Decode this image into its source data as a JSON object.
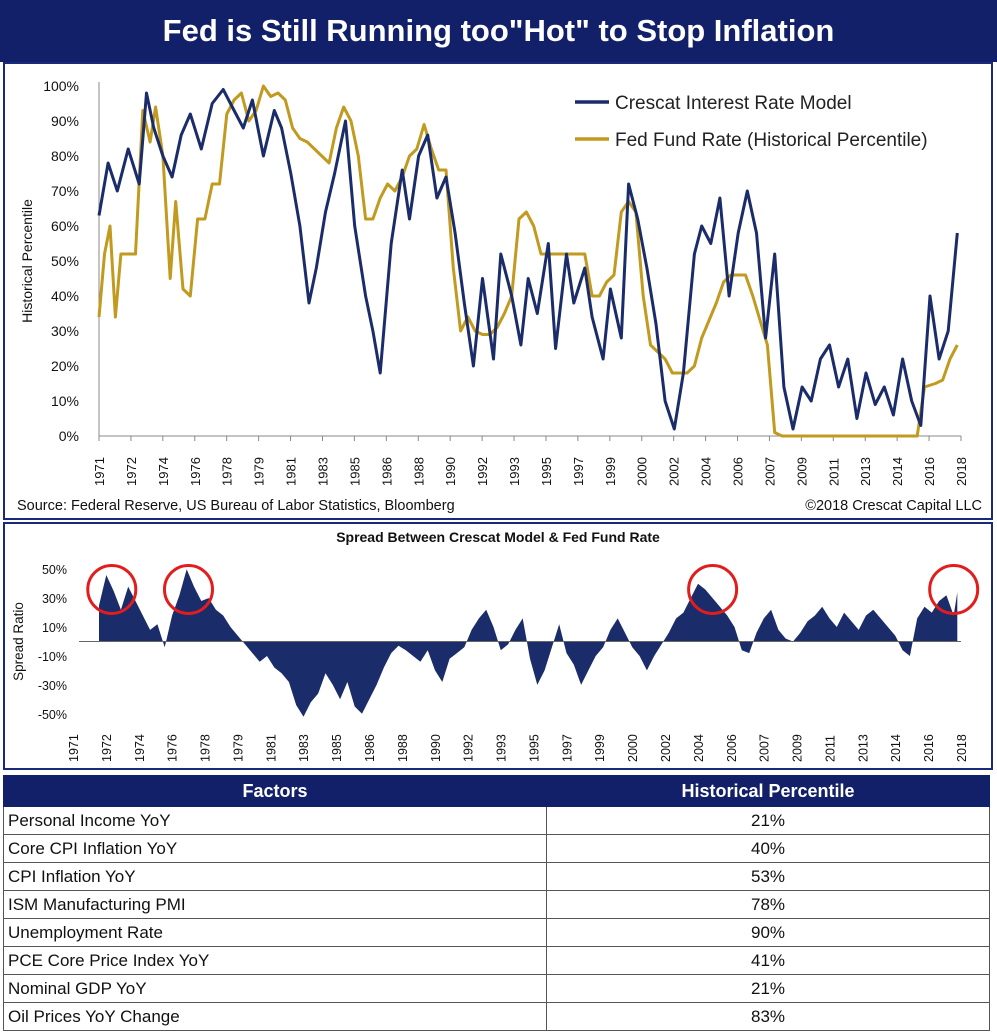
{
  "title": "Fed is Still Running too\"Hot\" to Stop Inflation",
  "colors": {
    "navy": "#12206a",
    "model": "#1b2c6b",
    "fed": "#c19a1f"
  },
  "chart_data": [
    {
      "type": "line",
      "ylabel": "Historical Percentile",
      "ylim": [
        0,
        100
      ],
      "yticks": [
        "0%",
        "10%",
        "20%",
        "30%",
        "40%",
        "50%",
        "60%",
        "70%",
        "80%",
        "90%",
        "100%"
      ],
      "xticks": [
        "1971",
        "1972",
        "1974",
        "1976",
        "1978",
        "1979",
        "1981",
        "1983",
        "1985",
        "1986",
        "1988",
        "1990",
        "1992",
        "1993",
        "1995",
        "1997",
        "1999",
        "2000",
        "2002",
        "2004",
        "2006",
        "2007",
        "2009",
        "2011",
        "2013",
        "2014",
        "2016",
        "2018"
      ],
      "legend_position": "top-right",
      "source": "Source: Federal Reserve,  US Bureau of Labor Statistics, Bloomberg",
      "copyright": "©2018 Crescat Capital LLC",
      "series": [
        {
          "name": "Crescat Interest Rate Model",
          "color": "#1b2c6b",
          "x": [
            1971.0,
            1971.5,
            1972.0,
            1972.6,
            1973.2,
            1973.6,
            1974.0,
            1974.5,
            1975.0,
            1975.5,
            1976.0,
            1976.6,
            1977.2,
            1977.8,
            1978.4,
            1978.9,
            1979.4,
            1980.0,
            1980.6,
            1981.0,
            1981.5,
            1982.0,
            1982.5,
            1982.9,
            1983.4,
            1983.9,
            1984.5,
            1985.0,
            1985.6,
            1986.0,
            1986.4,
            1987.0,
            1987.6,
            1988.0,
            1988.5,
            1989.0,
            1989.5,
            1990.0,
            1990.5,
            1991.0,
            1991.5,
            1992.0,
            1992.6,
            1993.0,
            1993.6,
            1994.1,
            1994.5,
            1995.0,
            1995.6,
            1996.0,
            1996.6,
            1997.0,
            1997.6,
            1998.0,
            1998.6,
            1999.0,
            1999.6,
            2000.0,
            2000.5,
            2001.0,
            2001.5,
            2002.0,
            2002.5,
            2003.0,
            2003.6,
            2004.0,
            2004.5,
            2005.0,
            2005.5,
            2006.0,
            2006.5,
            2007.0,
            2007.5,
            2008.0,
            2008.5,
            2009.0,
            2009.5,
            2010.0,
            2010.5,
            2011.0,
            2011.5,
            2012.0,
            2012.5,
            2013.0,
            2013.5,
            2014.0,
            2014.5,
            2015.0,
            2015.5,
            2016.0,
            2016.5,
            2017.0,
            2017.5,
            2018.0
          ],
          "values": [
            63,
            78,
            70,
            82,
            72,
            98,
            88,
            80,
            74,
            86,
            92,
            82,
            95,
            99,
            93,
            88,
            96,
            80,
            93,
            88,
            75,
            60,
            38,
            48,
            64,
            75,
            90,
            60,
            40,
            30,
            18,
            55,
            76,
            62,
            80,
            86,
            68,
            74,
            58,
            38,
            20,
            45,
            22,
            52,
            40,
            26,
            45,
            35,
            55,
            25,
            52,
            38,
            48,
            34,
            22,
            42,
            28,
            72,
            62,
            48,
            32,
            10,
            2,
            18,
            52,
            60,
            55,
            68,
            40,
            58,
            70,
            58,
            28,
            52,
            14,
            2,
            14,
            10,
            22,
            26,
            14,
            22,
            5,
            18,
            9,
            14,
            6,
            22,
            10,
            3,
            40,
            22,
            30,
            58
          ]
        },
        {
          "name": "Fed Fund Rate (Historical Percentile)",
          "color": "#c19a1f",
          "x": [
            1971.0,
            1971.3,
            1971.6,
            1971.9,
            1972.2,
            1972.6,
            1973.0,
            1973.4,
            1973.8,
            1974.1,
            1974.5,
            1974.9,
            1975.2,
            1975.6,
            1976.0,
            1976.4,
            1976.8,
            1977.2,
            1977.6,
            1978.0,
            1978.4,
            1978.8,
            1979.2,
            1979.6,
            1980.0,
            1980.4,
            1980.8,
            1981.2,
            1981.6,
            1982.0,
            1982.4,
            1982.8,
            1983.2,
            1983.6,
            1984.0,
            1984.4,
            1984.8,
            1985.2,
            1985.6,
            1986.0,
            1986.4,
            1986.8,
            1987.2,
            1987.6,
            1988.0,
            1988.4,
            1988.8,
            1989.2,
            1989.6,
            1990.0,
            1990.4,
            1990.8,
            1991.2,
            1991.6,
            1992.0,
            1992.4,
            1992.8,
            1993.2,
            1993.6,
            1994.0,
            1994.4,
            1994.8,
            1995.2,
            1995.6,
            1996.0,
            1996.4,
            1996.8,
            1997.2,
            1997.6,
            1998.0,
            1998.4,
            1998.8,
            1999.2,
            1999.6,
            2000.0,
            2000.4,
            2000.8,
            2001.2,
            2001.6,
            2002.0,
            2002.4,
            2002.8,
            2003.2,
            2003.6,
            2004.0,
            2004.4,
            2004.8,
            2005.2,
            2005.6,
            2006.0,
            2006.4,
            2006.8,
            2007.2,
            2007.6,
            2008.0,
            2008.4,
            2008.8,
            2009.4,
            2010.0,
            2011.0,
            2012.0,
            2013.0,
            2014.0,
            2015.0,
            2015.8,
            2016.2,
            2016.8,
            2017.2,
            2017.6,
            2018.0
          ],
          "values": [
            34,
            52,
            60,
            34,
            52,
            52,
            52,
            93,
            84,
            94,
            80,
            45,
            67,
            42,
            40,
            62,
            62,
            72,
            72,
            92,
            96,
            98,
            90,
            93,
            100,
            97,
            98,
            96,
            88,
            85,
            84,
            82,
            80,
            78,
            88,
            94,
            90,
            80,
            62,
            62,
            68,
            72,
            70,
            74,
            80,
            82,
            89,
            82,
            76,
            76,
            48,
            30,
            34,
            30,
            29,
            29,
            31,
            35,
            40,
            62,
            64,
            60,
            52,
            52,
            52,
            52,
            52,
            52,
            52,
            40,
            40,
            44,
            46,
            64,
            67,
            64,
            40,
            26,
            24,
            22,
            18,
            18,
            18,
            20,
            28,
            33,
            38,
            44,
            46,
            46,
            46,
            40,
            33,
            26,
            1,
            0,
            0,
            0,
            0,
            0,
            0,
            0,
            0,
            0,
            0,
            14,
            15,
            16,
            22,
            26
          ]
        }
      ]
    },
    {
      "type": "area",
      "title": "Spread Between Crescat Model & Fed Fund Rate",
      "ylabel": "Spread Ratio",
      "ylim": [
        -55,
        55
      ],
      "yticks": [
        "-50%",
        "-30%",
        "-10%",
        "10%",
        "30%",
        "50%"
      ],
      "xticks": [
        "1971",
        "1972",
        "1974",
        "1976",
        "1978",
        "1979",
        "1981",
        "1983",
        "1985",
        "1986",
        "1988",
        "1990",
        "1992",
        "1993",
        "1995",
        "1997",
        "1999",
        "2000",
        "2002",
        "2004",
        "2006",
        "2007",
        "2009",
        "2011",
        "2013",
        "2014",
        "2016",
        "2018"
      ],
      "series": [
        {
          "name": "",
          "color": "#1b2c6b",
          "x": [
            1971.0,
            1971.4,
            1971.8,
            1972.2,
            1972.6,
            1973.0,
            1973.4,
            1973.8,
            1974.2,
            1974.6,
            1975.0,
            1975.4,
            1975.8,
            1976.2,
            1976.6,
            1977.0,
            1977.4,
            1977.8,
            1978.2,
            1978.6,
            1979.0,
            1979.4,
            1979.8,
            1980.2,
            1980.6,
            1981.0,
            1981.4,
            1981.8,
            1982.2,
            1982.6,
            1983.0,
            1983.4,
            1983.8,
            1984.2,
            1984.6,
            1985.0,
            1985.4,
            1985.8,
            1986.2,
            1986.6,
            1987.0,
            1987.4,
            1987.8,
            1988.2,
            1988.6,
            1989.0,
            1989.4,
            1989.8,
            1990.2,
            1990.6,
            1991.0,
            1991.4,
            1991.8,
            1992.2,
            1992.6,
            1993.0,
            1993.4,
            1993.8,
            1994.2,
            1994.6,
            1995.0,
            1995.4,
            1995.8,
            1996.2,
            1996.6,
            1997.0,
            1997.4,
            1997.8,
            1998.2,
            1998.6,
            1999.0,
            1999.4,
            1999.8,
            2000.2,
            2000.6,
            2001.0,
            2001.4,
            2001.8,
            2002.2,
            2002.6,
            2003.0,
            2003.4,
            2003.8,
            2004.2,
            2004.6,
            2005.0,
            2005.4,
            2005.8,
            2006.2,
            2006.6,
            2007.0,
            2007.4,
            2007.8,
            2008.2,
            2008.6,
            2009.0,
            2009.4,
            2009.8,
            2010.2,
            2010.6,
            2011.0,
            2011.4,
            2011.8,
            2012.2,
            2012.6,
            2013.0,
            2013.4,
            2013.8,
            2014.2,
            2014.6,
            2015.0,
            2015.4,
            2015.8,
            2016.2,
            2016.6,
            2017.0,
            2017.4,
            2017.8,
            2018.0
          ],
          "values": [
            25,
            46,
            35,
            22,
            38,
            28,
            18,
            8,
            12,
            -4,
            18,
            32,
            50,
            38,
            28,
            30,
            22,
            18,
            10,
            4,
            -2,
            -8,
            -14,
            -10,
            -18,
            -22,
            -28,
            -44,
            -52,
            -42,
            -36,
            -22,
            -30,
            -40,
            -28,
            -45,
            -50,
            -40,
            -30,
            -18,
            -8,
            -3,
            -6,
            -10,
            -14,
            -6,
            -20,
            -28,
            -12,
            -8,
            -4,
            8,
            16,
            22,
            10,
            -6,
            -2,
            8,
            16,
            -12,
            -30,
            -20,
            -4,
            12,
            -8,
            -16,
            -30,
            -20,
            -10,
            -4,
            8,
            16,
            6,
            -4,
            -10,
            -20,
            -10,
            -2,
            6,
            16,
            20,
            30,
            40,
            36,
            30,
            24,
            18,
            10,
            -6,
            -8,
            6,
            16,
            22,
            8,
            2,
            0,
            6,
            14,
            18,
            24,
            16,
            10,
            20,
            14,
            8,
            18,
            22,
            16,
            10,
            4,
            -6,
            -10,
            16,
            24,
            20,
            28,
            32,
            18,
            34
          ]
        }
      ],
      "highlights": [
        1971.7,
        1975.9,
        2004.6,
        2017.8
      ]
    }
  ],
  "table": {
    "headers": [
      "Factors",
      "Historical Percentile"
    ],
    "rows": [
      {
        "factor": "Personal Income YoY",
        "value": "21%"
      },
      {
        "factor": "Core CPI Inflation YoY",
        "value": "40%"
      },
      {
        "factor": "CPI Inflation YoY",
        "value": "53%"
      },
      {
        "factor": "ISM Manufacturing PMI",
        "value": "78%"
      },
      {
        "factor": "Unemployment Rate",
        "value": "90%"
      },
      {
        "factor": "PCE Core Price Index YoY",
        "value": "41%"
      },
      {
        "factor": "Nominal GDP YoY",
        "value": "21%"
      },
      {
        "factor": "Oil Prices YoY Change",
        "value": "83%"
      }
    ]
  }
}
